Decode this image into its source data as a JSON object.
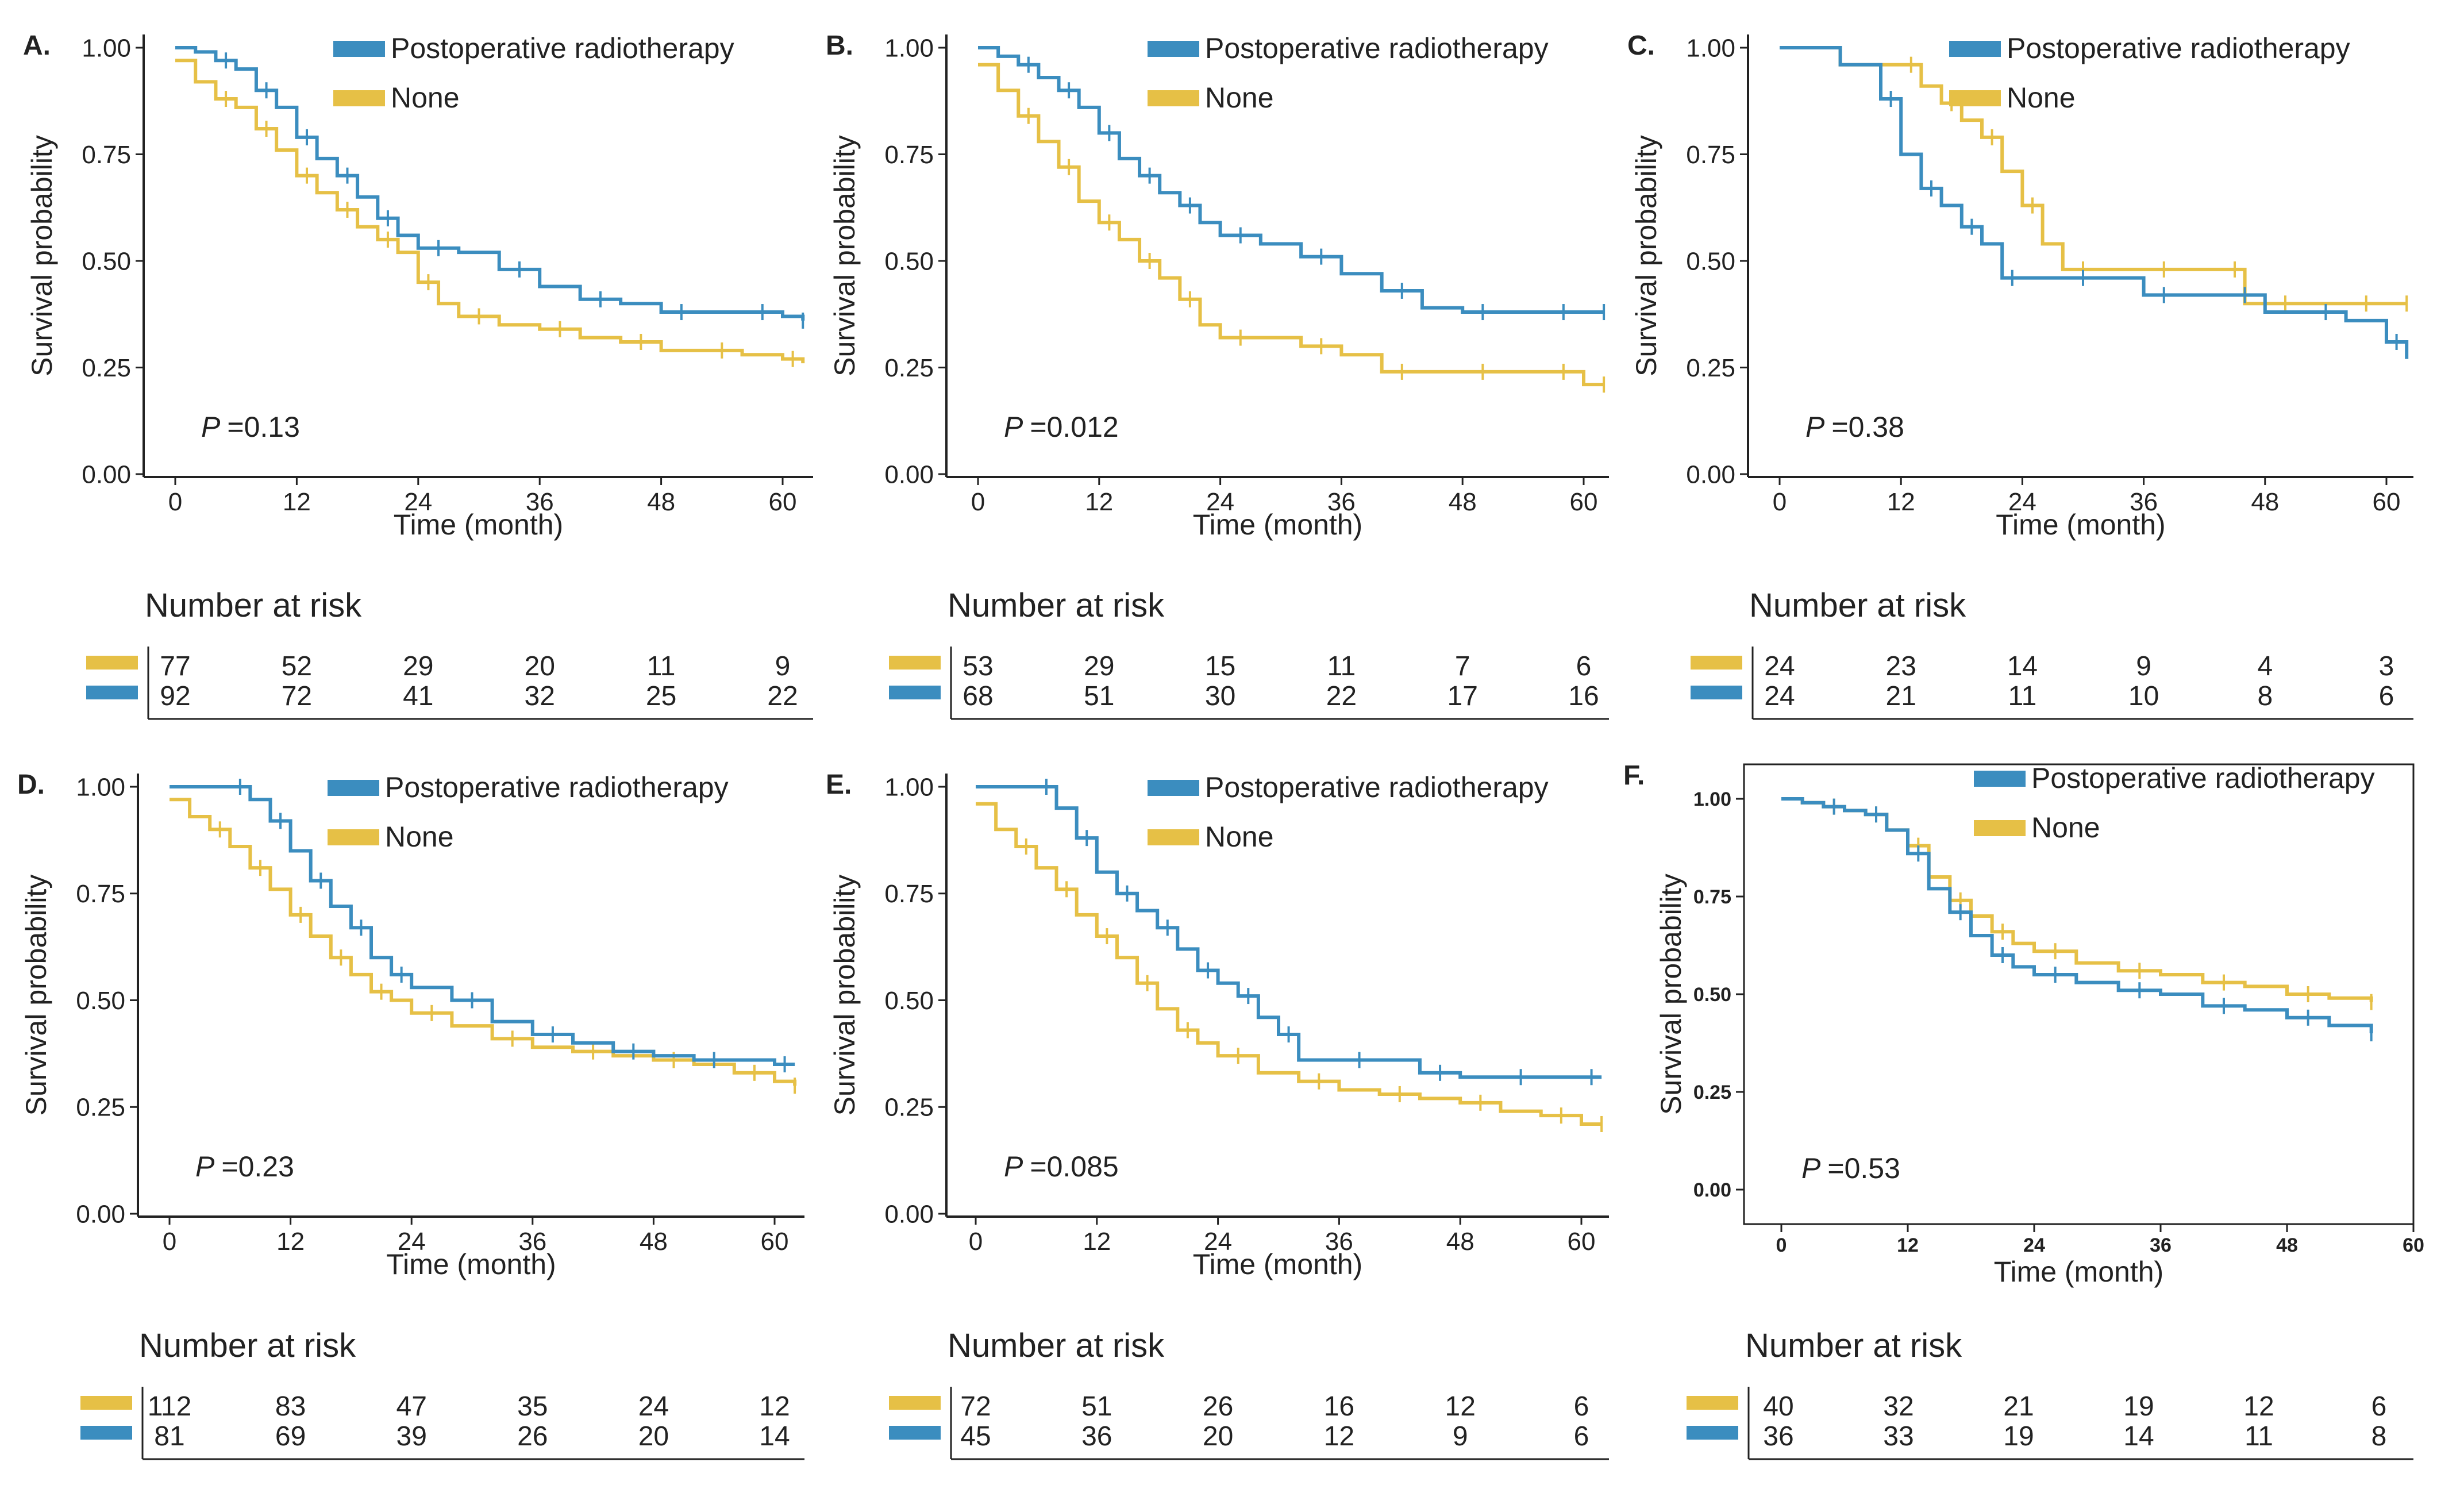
{
  "figure": {
    "series_colors": {
      "radiotherapy": "#3b8dbf",
      "none": "#e6c046"
    },
    "common": {
      "xlabel": "Time (month)",
      "ylabel": "Survival probability",
      "xticks": [
        "0",
        "12",
        "24",
        "36",
        "48",
        "60"
      ],
      "yticks": [
        "0.00",
        "0.25",
        "0.50",
        "0.75",
        "1.00"
      ],
      "legend_radiotherapy": "Postoperative radiotherapy",
      "legend_none": "None",
      "risk_title": "Number at risk",
      "p_symbol": "P"
    }
  },
  "chart_data": [
    {
      "type": "line",
      "panel": "A.",
      "title": "",
      "xlabel": "Time (month)",
      "ylabel": "Survival probability",
      "xlim": [
        0,
        62
      ],
      "ylim": [
        0,
        1
      ],
      "p_value": "=0.13",
      "series": [
        {
          "name": "Postoperative radiotherapy",
          "x": [
            0,
            2,
            4,
            6,
            8,
            10,
            12,
            14,
            16,
            18,
            20,
            22,
            24,
            28,
            32,
            36,
            40,
            44,
            48,
            52,
            56,
            60,
            62
          ],
          "y": [
            1.0,
            0.99,
            0.97,
            0.95,
            0.9,
            0.86,
            0.79,
            0.74,
            0.7,
            0.65,
            0.6,
            0.56,
            0.53,
            0.52,
            0.48,
            0.44,
            0.41,
            0.4,
            0.38,
            0.38,
            0.38,
            0.37,
            0.36
          ]
        },
        {
          "name": "None",
          "x": [
            0,
            2,
            4,
            6,
            8,
            10,
            12,
            14,
            16,
            18,
            20,
            22,
            24,
            26,
            28,
            32,
            36,
            40,
            44,
            48,
            52,
            56,
            60,
            62
          ],
          "y": [
            0.97,
            0.92,
            0.88,
            0.86,
            0.81,
            0.76,
            0.7,
            0.66,
            0.62,
            0.58,
            0.55,
            0.52,
            0.45,
            0.4,
            0.37,
            0.35,
            0.34,
            0.32,
            0.31,
            0.29,
            0.29,
            0.28,
            0.27,
            0.26
          ]
        }
      ],
      "risk": {
        "none": [
          "77",
          "52",
          "29",
          "20",
          "11",
          "9"
        ],
        "radiotherapy": [
          "92",
          "72",
          "41",
          "32",
          "25",
          "22"
        ]
      }
    },
    {
      "type": "line",
      "panel": "B.",
      "title": "",
      "xlabel": "Time (month)",
      "ylabel": "Survival probability",
      "xlim": [
        0,
        62
      ],
      "ylim": [
        0,
        1
      ],
      "p_value": "=0.012",
      "series": [
        {
          "name": "Postoperative radiotherapy",
          "x": [
            0,
            2,
            4,
            6,
            8,
            10,
            12,
            14,
            16,
            18,
            20,
            22,
            24,
            28,
            32,
            36,
            40,
            44,
            48,
            52,
            56,
            60,
            62
          ],
          "y": [
            1.0,
            0.98,
            0.96,
            0.93,
            0.9,
            0.86,
            0.8,
            0.74,
            0.7,
            0.66,
            0.63,
            0.59,
            0.56,
            0.54,
            0.51,
            0.47,
            0.43,
            0.39,
            0.38,
            0.38,
            0.38,
            0.38,
            0.38
          ]
        },
        {
          "name": "None",
          "x": [
            0,
            2,
            4,
            6,
            8,
            10,
            12,
            14,
            16,
            18,
            20,
            22,
            24,
            28,
            32,
            36,
            40,
            44,
            48,
            52,
            56,
            60,
            62
          ],
          "y": [
            0.96,
            0.9,
            0.84,
            0.78,
            0.72,
            0.64,
            0.59,
            0.55,
            0.5,
            0.46,
            0.41,
            0.35,
            0.32,
            0.32,
            0.3,
            0.28,
            0.24,
            0.24,
            0.24,
            0.24,
            0.24,
            0.21,
            0.21
          ]
        }
      ],
      "risk": {
        "none": [
          "53",
          "29",
          "15",
          "11",
          "7",
          "6"
        ],
        "radiotherapy": [
          "68",
          "51",
          "30",
          "22",
          "17",
          "16"
        ]
      }
    },
    {
      "type": "line",
      "panel": "C.",
      "title": "",
      "xlabel": "Time (month)",
      "ylabel": "Survival probability",
      "xlim": [
        0,
        62
      ],
      "ylim": [
        0,
        1
      ],
      "p_value": "=0.38",
      "series": [
        {
          "name": "Postoperative radiotherapy",
          "x": [
            0,
            6,
            10,
            12,
            14,
            16,
            18,
            20,
            22,
            24,
            28,
            32,
            36,
            40,
            44,
            48,
            52,
            56,
            60,
            62
          ],
          "y": [
            1.0,
            0.96,
            0.88,
            0.75,
            0.67,
            0.63,
            0.58,
            0.54,
            0.46,
            0.46,
            0.46,
            0.46,
            0.42,
            0.42,
            0.42,
            0.38,
            0.38,
            0.36,
            0.31,
            0.27
          ]
        },
        {
          "name": "None",
          "x": [
            0,
            6,
            12,
            14,
            16,
            18,
            20,
            22,
            24,
            26,
            28,
            32,
            36,
            40,
            44,
            46,
            48,
            52,
            56,
            60,
            62
          ],
          "y": [
            1.0,
            0.96,
            0.96,
            0.91,
            0.87,
            0.83,
            0.79,
            0.71,
            0.63,
            0.54,
            0.48,
            0.48,
            0.48,
            0.48,
            0.48,
            0.4,
            0.4,
            0.4,
            0.4,
            0.4,
            0.4
          ]
        }
      ],
      "risk": {
        "none": [
          "24",
          "23",
          "14",
          "9",
          "4",
          "3"
        ],
        "radiotherapy": [
          "24",
          "21",
          "11",
          "10",
          "8",
          "6"
        ]
      }
    },
    {
      "type": "line",
      "panel": "D.",
      "title": "",
      "xlabel": "Time (month)",
      "ylabel": "Survival probability",
      "xlim": [
        0,
        62
      ],
      "ylim": [
        0,
        1
      ],
      "p_value": "=0.23",
      "series": [
        {
          "name": "Postoperative radiotherapy",
          "x": [
            0,
            4,
            6,
            8,
            10,
            12,
            14,
            16,
            18,
            20,
            22,
            24,
            28,
            32,
            36,
            40,
            44,
            48,
            52,
            56,
            60,
            62
          ],
          "y": [
            1.0,
            1.0,
            1.0,
            0.97,
            0.92,
            0.85,
            0.78,
            0.72,
            0.67,
            0.6,
            0.56,
            0.53,
            0.5,
            0.45,
            0.42,
            0.4,
            0.38,
            0.37,
            0.36,
            0.36,
            0.35,
            0.35
          ]
        },
        {
          "name": "None",
          "x": [
            0,
            2,
            4,
            6,
            8,
            10,
            12,
            14,
            16,
            18,
            20,
            22,
            24,
            28,
            32,
            36,
            40,
            44,
            48,
            52,
            56,
            60,
            62
          ],
          "y": [
            0.97,
            0.93,
            0.9,
            0.86,
            0.81,
            0.76,
            0.7,
            0.65,
            0.6,
            0.56,
            0.52,
            0.5,
            0.47,
            0.44,
            0.41,
            0.39,
            0.38,
            0.37,
            0.36,
            0.35,
            0.33,
            0.31,
            0.3
          ]
        }
      ],
      "risk": {
        "none": [
          "112",
          "83",
          "47",
          "35",
          "24",
          "12"
        ],
        "radiotherapy": [
          "81",
          "69",
          "39",
          "26",
          "20",
          "14"
        ]
      }
    },
    {
      "type": "line",
      "panel": "E.",
      "title": "",
      "xlabel": "Time (month)",
      "ylabel": "Survival probability",
      "xlim": [
        0,
        62
      ],
      "ylim": [
        0,
        1
      ],
      "p_value": "=0.085",
      "series": [
        {
          "name": "Postoperative radiotherapy",
          "x": [
            0,
            4,
            6,
            8,
            10,
            12,
            14,
            16,
            18,
            20,
            22,
            24,
            26,
            28,
            30,
            32,
            36,
            40,
            44,
            48,
            52,
            56,
            60,
            62
          ],
          "y": [
            1.0,
            1.0,
            1.0,
            0.95,
            0.88,
            0.8,
            0.75,
            0.71,
            0.67,
            0.62,
            0.57,
            0.54,
            0.51,
            0.46,
            0.42,
            0.36,
            0.36,
            0.36,
            0.33,
            0.32,
            0.32,
            0.32,
            0.32,
            0.32
          ]
        },
        {
          "name": "None",
          "x": [
            0,
            2,
            4,
            6,
            8,
            10,
            12,
            14,
            16,
            18,
            20,
            22,
            24,
            28,
            32,
            36,
            40,
            44,
            48,
            52,
            56,
            60,
            62
          ],
          "y": [
            0.96,
            0.9,
            0.86,
            0.81,
            0.76,
            0.7,
            0.65,
            0.6,
            0.54,
            0.48,
            0.43,
            0.4,
            0.37,
            0.33,
            0.31,
            0.29,
            0.28,
            0.27,
            0.26,
            0.24,
            0.23,
            0.21,
            0.21
          ]
        }
      ],
      "risk": {
        "none": [
          "72",
          "51",
          "26",
          "16",
          "12",
          "6"
        ],
        "radiotherapy": [
          "45",
          "36",
          "20",
          "12",
          "9",
          "6"
        ]
      }
    },
    {
      "type": "line",
      "panel": "F.",
      "title": "",
      "xlabel": "Time (month)",
      "ylabel": "Survival probability",
      "xlim": [
        0,
        60
      ],
      "ylim": [
        0,
        1
      ],
      "p_value": "=0.53",
      "series": [
        {
          "name": "Postoperative radiotherapy",
          "x": [
            0,
            2,
            4,
            6,
            8,
            10,
            12,
            14,
            16,
            18,
            20,
            22,
            24,
            28,
            32,
            36,
            40,
            44,
            48,
            52,
            56
          ],
          "y": [
            1.0,
            0.99,
            0.98,
            0.97,
            0.96,
            0.92,
            0.86,
            0.77,
            0.71,
            0.65,
            0.6,
            0.57,
            0.55,
            0.53,
            0.51,
            0.5,
            0.47,
            0.46,
            0.44,
            0.42,
            0.4
          ]
        },
        {
          "name": "None",
          "x": [
            0,
            2,
            4,
            6,
            8,
            10,
            12,
            14,
            16,
            18,
            20,
            22,
            24,
            28,
            32,
            36,
            40,
            44,
            48,
            52,
            56
          ],
          "y": [
            1.0,
            0.99,
            0.98,
            0.97,
            0.96,
            0.92,
            0.88,
            0.8,
            0.74,
            0.7,
            0.66,
            0.63,
            0.61,
            0.58,
            0.56,
            0.55,
            0.53,
            0.52,
            0.5,
            0.49,
            0.48
          ]
        }
      ],
      "risk": {
        "none": [
          "40",
          "32",
          "21",
          "19",
          "12",
          "6"
        ],
        "radiotherapy": [
          "36",
          "33",
          "19",
          "14",
          "11",
          "8"
        ]
      }
    }
  ]
}
